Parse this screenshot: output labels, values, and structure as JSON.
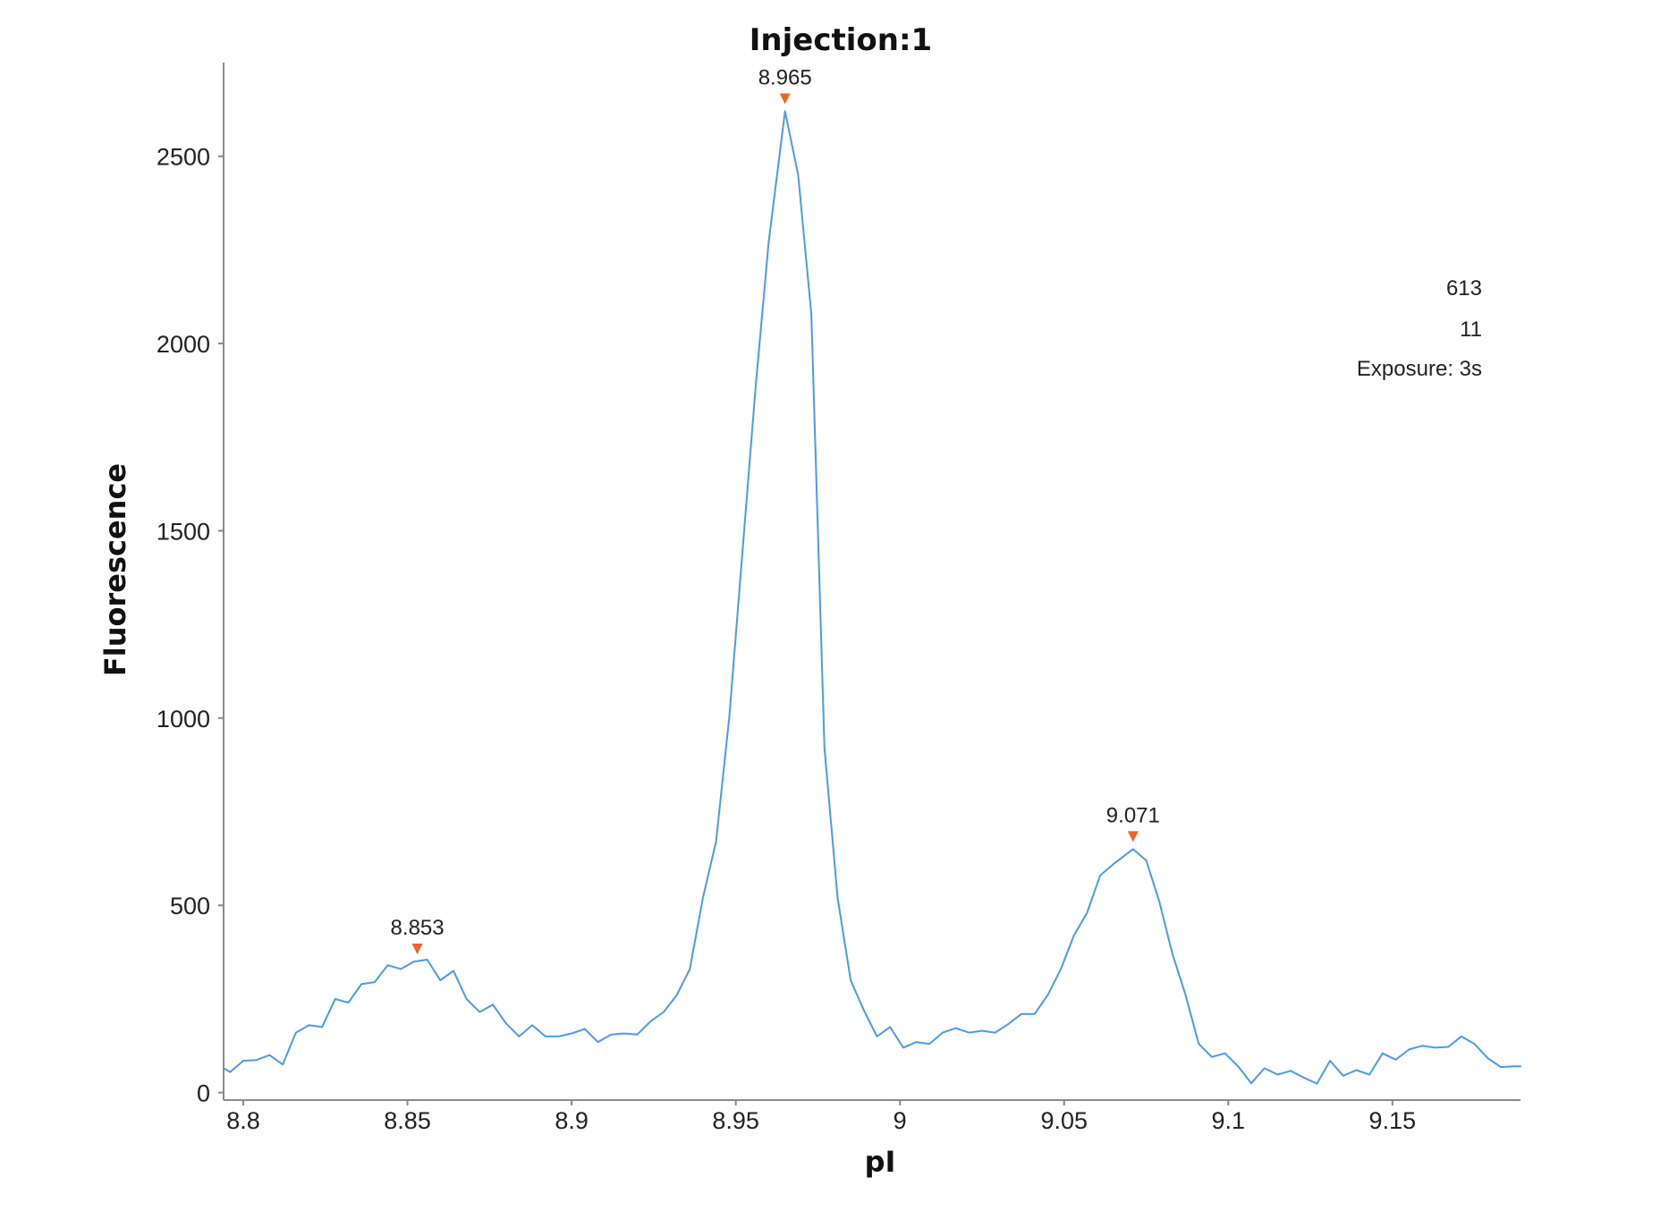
{
  "chart_data": {
    "type": "line",
    "title": "Injection:1",
    "xlabel": "pI",
    "ylabel": "Fluorescence",
    "xlim": [
      8.794,
      9.189
    ],
    "ylim": [
      -20,
      2750
    ],
    "xticks": [
      8.8,
      8.85,
      8.9,
      8.95,
      9,
      9.05,
      9.1,
      9.15
    ],
    "xtick_labels": [
      "8.8",
      "8.85",
      "8.9",
      "8.95",
      "9",
      "9.05",
      "9.1",
      "9.15"
    ],
    "yticks": [
      0,
      500,
      1000,
      1500,
      2000,
      2500
    ],
    "ytick_labels": [
      "0",
      "500",
      "1000",
      "1500",
      "2000",
      "2500"
    ],
    "grid": false,
    "series": [
      {
        "color": "#4a9bef",
        "x": [
          8.794,
          8.796,
          8.8,
          8.804,
          8.808,
          8.812,
          8.816,
          8.82,
          8.824,
          8.828,
          8.832,
          8.836,
          8.84,
          8.844,
          8.848,
          8.852,
          8.856,
          8.86,
          8.864,
          8.868,
          8.872,
          8.876,
          8.88,
          8.884,
          8.888,
          8.892,
          8.896,
          8.9,
          8.904,
          8.908,
          8.912,
          8.916,
          8.92,
          8.924,
          8.928,
          8.932,
          8.936,
          8.94,
          8.944,
          8.948,
          8.952,
          8.956,
          8.96,
          8.965,
          8.969,
          8.973,
          8.977,
          8.981,
          8.985,
          8.989,
          8.993,
          8.997,
          9.001,
          9.005,
          9.009,
          9.013,
          9.017,
          9.021,
          9.025,
          9.029,
          9.033,
          9.037,
          9.041,
          9.045,
          9.049,
          9.053,
          9.057,
          9.061,
          9.065,
          9.071,
          9.075,
          9.079,
          9.083,
          9.087,
          9.091,
          9.095,
          9.099,
          9.103,
          9.107,
          9.111,
          9.115,
          9.119,
          9.123,
          9.127,
          9.131,
          9.135,
          9.139,
          9.143,
          9.147,
          9.151,
          9.155,
          9.159,
          9.163,
          9.167,
          9.171,
          9.175,
          9.179,
          9.183,
          9.187,
          9.189
        ],
        "y": [
          65,
          55,
          85,
          87,
          100,
          75,
          160,
          180,
          175,
          250,
          240,
          290,
          295,
          340,
          330,
          350,
          355,
          300,
          325,
          250,
          215,
          235,
          185,
          150,
          180,
          150,
          150,
          158,
          170,
          135,
          155,
          158,
          155,
          190,
          215,
          260,
          330,
          520,
          670,
          1000,
          1440,
          1880,
          2270,
          2620,
          2450,
          2080,
          920,
          520,
          300,
          220,
          150,
          175,
          120,
          135,
          130,
          160,
          172,
          160,
          165,
          160,
          183,
          210,
          210,
          260,
          330,
          420,
          480,
          580,
          610,
          650,
          620,
          510,
          370,
          260,
          130,
          95,
          105,
          70,
          25,
          65,
          48,
          58,
          40,
          24,
          85,
          45,
          60,
          48,
          105,
          88,
          115,
          125,
          120,
          122,
          150,
          130,
          92,
          68,
          70,
          70
        ]
      }
    ],
    "peaks": [
      {
        "x": 8.853,
        "y": 350,
        "label": "8.853"
      },
      {
        "x": 8.965,
        "y": 2620,
        "label": "8.965"
      },
      {
        "x": 9.071,
        "y": 650,
        "label": "9.071"
      }
    ],
    "marker_color": "#f0642a",
    "info_lines": [
      "613",
      "11",
      "Exposure: 3s"
    ]
  }
}
